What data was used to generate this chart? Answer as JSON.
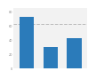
{
  "categories": [
    "A",
    "B",
    "C"
  ],
  "values": [
    72,
    29,
    42
  ],
  "bar_color": "#2b7bba",
  "dashed_line_y": 62,
  "ylim": [
    0,
    85
  ],
  "yticks": [
    0,
    20,
    40,
    60,
    80
  ],
  "background_color": "#ffffff",
  "plot_bg_color": "#f2f2f2",
  "bar_width": 0.6
}
